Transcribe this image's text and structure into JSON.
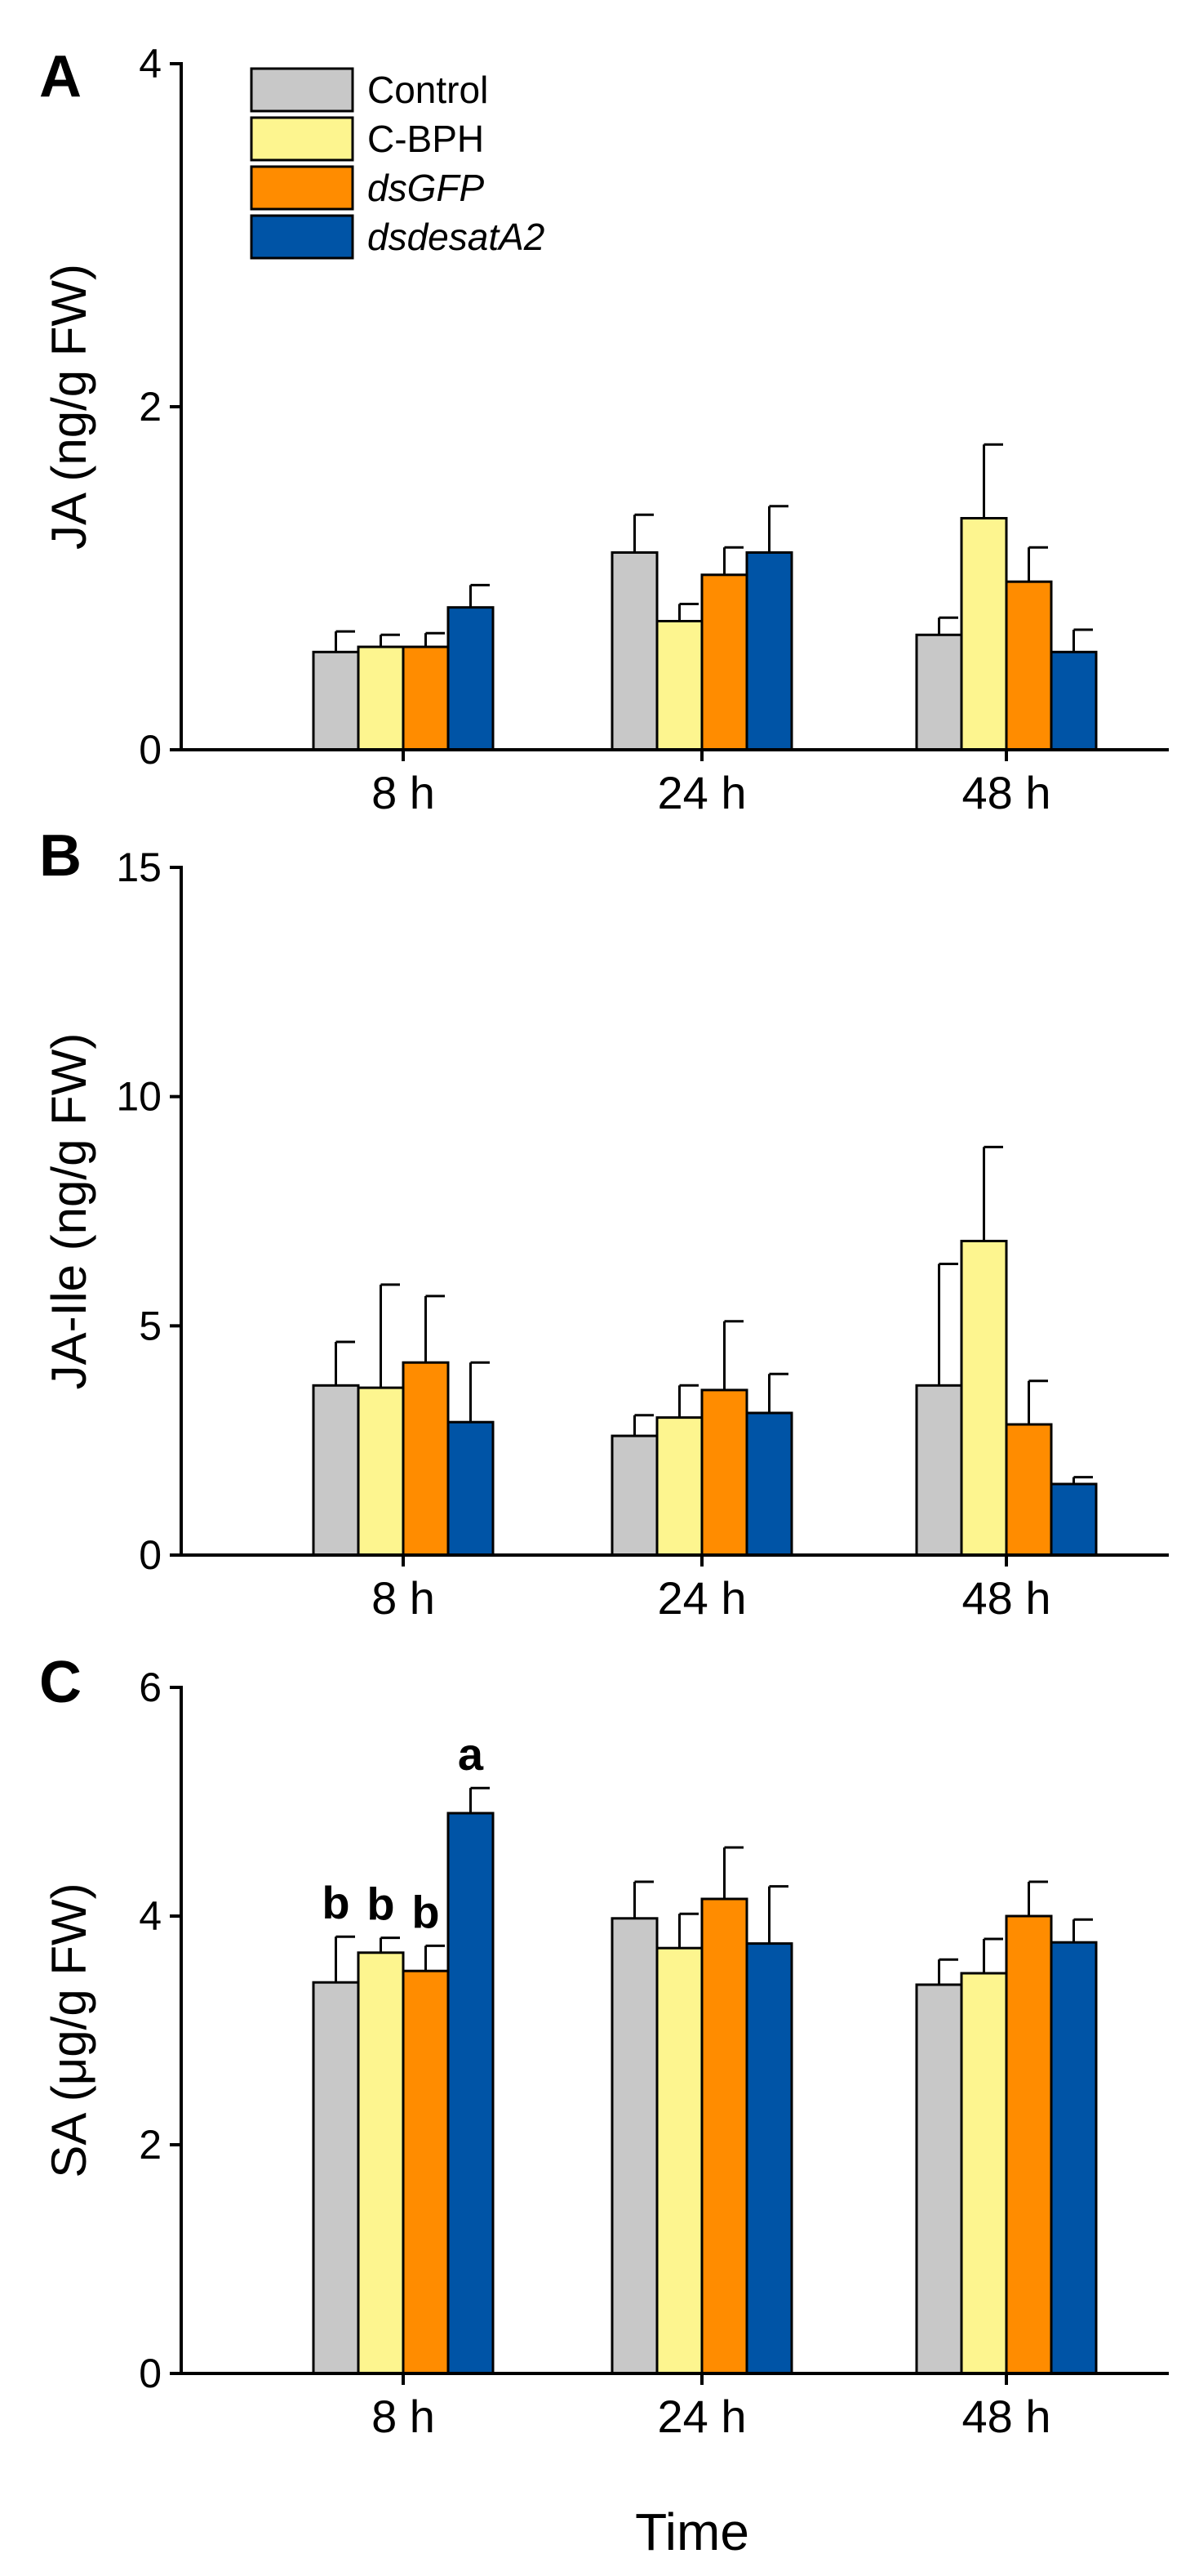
{
  "colors": {
    "Control": "#c8c8c8",
    "C-BPH": "#fdf58f",
    "dsGFP": "#ff8c00",
    "dsdesatA2": "#0054a6"
  },
  "legend": [
    {
      "name": "Control",
      "italic": false
    },
    {
      "name": "C-BPH",
      "italic": false
    },
    {
      "name": "dsGFP",
      "italic": true
    },
    {
      "name": "dsdesatA2",
      "italic": true
    }
  ],
  "xlabel": "Time",
  "chart_data": [
    {
      "panel": "A",
      "type": "bar",
      "ylabel": "JA (ng/g FW)",
      "ylim": [
        0,
        4
      ],
      "yticks": [
        0,
        2,
        4
      ],
      "categories": [
        "8 h",
        "24 h",
        "48 h"
      ],
      "series": [
        {
          "name": "Control",
          "values": [
            0.57,
            1.15,
            0.67
          ],
          "errors": [
            0.12,
            0.22,
            0.1
          ]
        },
        {
          "name": "C-BPH",
          "values": [
            0.6,
            0.75,
            1.35
          ],
          "errors": [
            0.07,
            0.1,
            0.43
          ]
        },
        {
          "name": "dsGFP",
          "values": [
            0.6,
            1.02,
            0.98
          ],
          "errors": [
            0.08,
            0.16,
            0.2
          ]
        },
        {
          "name": "dsdesatA2",
          "values": [
            0.83,
            1.15,
            0.57
          ],
          "errors": [
            0.13,
            0.27,
            0.13
          ]
        }
      ],
      "annotations": []
    },
    {
      "panel": "B",
      "type": "bar",
      "ylabel": "JA-Ile (ng/g FW)",
      "ylim": [
        0,
        15
      ],
      "yticks": [
        0,
        5,
        10,
        15
      ],
      "categories": [
        "8 h",
        "24 h",
        "48 h"
      ],
      "series": [
        {
          "name": "Control",
          "values": [
            3.7,
            2.6,
            3.7
          ],
          "errors": [
            0.95,
            0.45,
            2.65
          ]
        },
        {
          "name": "C-BPH",
          "values": [
            3.65,
            3.0,
            6.85
          ],
          "errors": [
            2.25,
            0.7,
            2.05
          ]
        },
        {
          "name": "dsGFP",
          "values": [
            4.2,
            3.6,
            2.85
          ],
          "errors": [
            1.45,
            1.5,
            0.95
          ]
        },
        {
          "name": "dsdesatA2",
          "values": [
            2.9,
            3.1,
            1.55
          ],
          "errors": [
            1.3,
            0.85,
            0.15
          ]
        }
      ],
      "annotations": []
    },
    {
      "panel": "C",
      "type": "bar",
      "ylabel": "SA (μg/g FW)",
      "ylim": [
        0,
        6
      ],
      "yticks": [
        0,
        2,
        4,
        6
      ],
      "categories": [
        "8 h",
        "24 h",
        "48 h"
      ],
      "series": [
        {
          "name": "Control",
          "values": [
            3.42,
            3.98,
            3.4
          ],
          "errors": [
            0.4,
            0.32,
            0.22
          ]
        },
        {
          "name": "C-BPH",
          "values": [
            3.68,
            3.72,
            3.5
          ],
          "errors": [
            0.13,
            0.3,
            0.3
          ]
        },
        {
          "name": "dsGFP",
          "values": [
            3.52,
            4.15,
            4.0
          ],
          "errors": [
            0.22,
            0.45,
            0.3
          ]
        },
        {
          "name": "dsdesatA2",
          "values": [
            4.9,
            3.76,
            3.77
          ],
          "errors": [
            0.22,
            0.5,
            0.2
          ]
        }
      ],
      "annotations": [
        {
          "category": "8 h",
          "series": "Control",
          "text": "b"
        },
        {
          "category": "8 h",
          "series": "C-BPH",
          "text": "b"
        },
        {
          "category": "8 h",
          "series": "dsGFP",
          "text": "b"
        },
        {
          "category": "8 h",
          "series": "dsdesatA2",
          "text": "a"
        }
      ]
    }
  ]
}
